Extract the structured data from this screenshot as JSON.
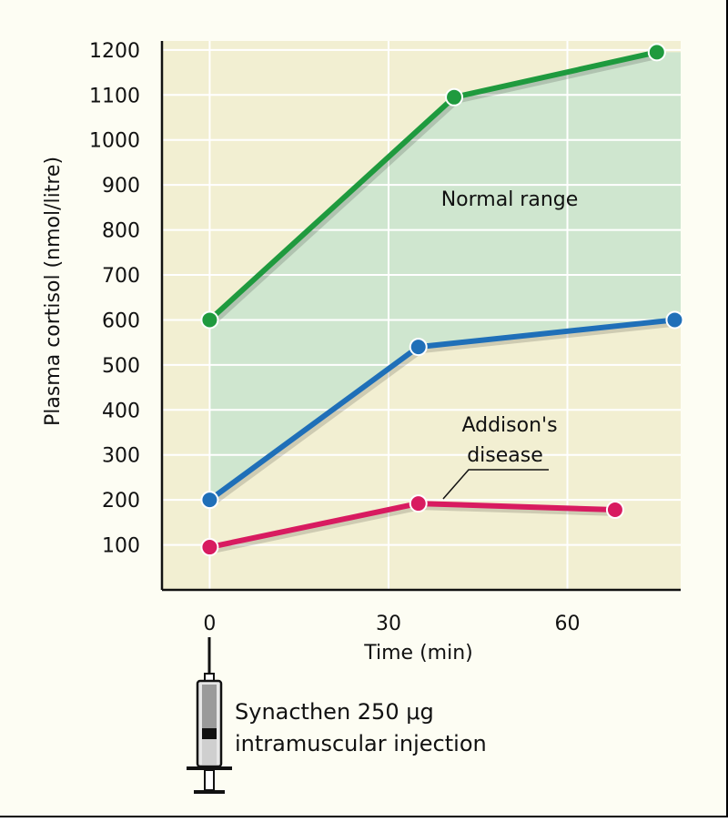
{
  "chart_data": {
    "type": "line",
    "xlabel": "Time (min)",
    "ylabel": "Plasma cortisol (nmol/litre)",
    "x_ticks": [
      0,
      30,
      60
    ],
    "y_ticks": [
      100,
      200,
      300,
      400,
      500,
      600,
      700,
      800,
      900,
      1000,
      1100,
      1200
    ],
    "xlim": [
      -8,
      79
    ],
    "ylim": [
      0,
      1220
    ],
    "grid": true,
    "series": [
      {
        "key": "upper",
        "color": "#1f9a3e",
        "points": [
          [
            0,
            600
          ],
          [
            41,
            1095
          ],
          [
            75,
            1195
          ]
        ]
      },
      {
        "key": "lower",
        "color": "#1f6fb8",
        "points": [
          [
            0,
            200
          ],
          [
            35,
            540
          ],
          [
            78,
            600
          ]
        ]
      },
      {
        "key": "addison",
        "color": "#d81b60",
        "points": [
          [
            0,
            95
          ],
          [
            35,
            192
          ],
          [
            68,
            178
          ]
        ]
      }
    ],
    "band": {
      "label": "Normal range",
      "color": "#cfe6cf"
    },
    "annotations": {
      "addison_line1": "Addison's",
      "addison_line2": "disease"
    },
    "colors": {
      "plot_bg": "#f2efd2",
      "grid": "#ffffff",
      "band": "#cfe6cf"
    }
  },
  "injection": {
    "line1": "Synacthen 250 μg",
    "line2": "intramuscular injection",
    "icon": "syringe-icon"
  }
}
